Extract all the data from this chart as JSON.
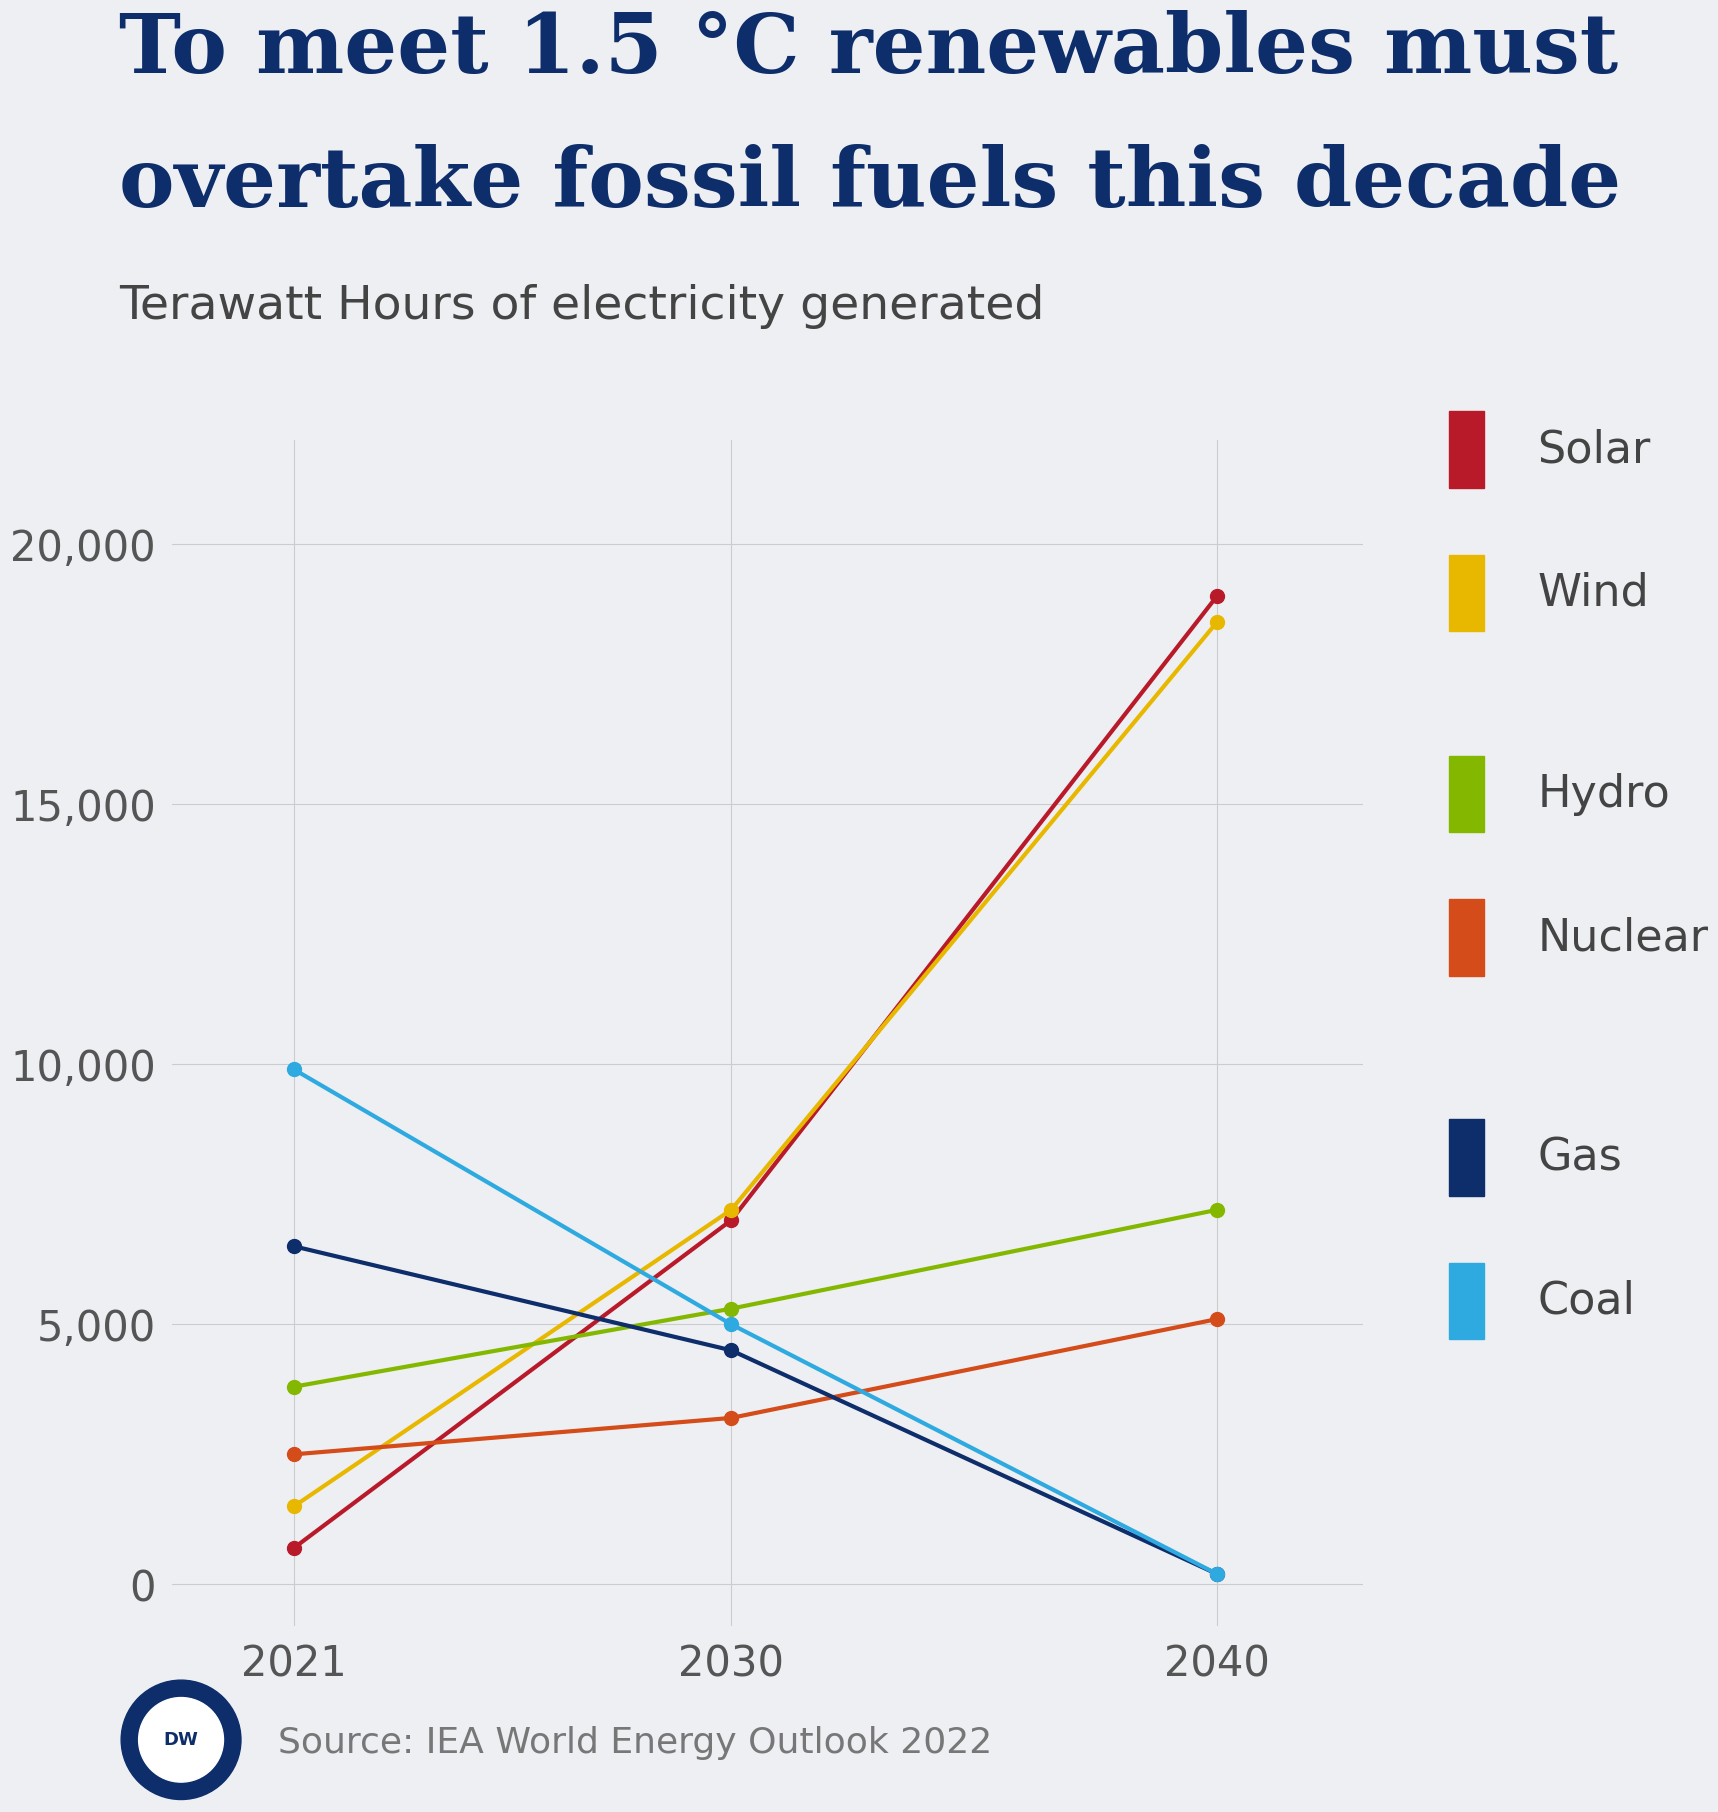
{
  "title_line1": "To meet 1.5 °C renewables must",
  "title_line2": "overtake fossil fuels this decade",
  "subtitle": "Terawatt Hours of electricity generated",
  "source": "Source: IEA World Energy Outlook 2022",
  "background_color": "#eeeff3",
  "title_color": "#0d2d6b",
  "subtitle_color": "#444444",
  "source_color": "#777777",
  "series": [
    {
      "name": "Solar",
      "color": "#b81a2a",
      "data": {
        "2021": 700,
        "2030": 7000,
        "2040": 19000
      }
    },
    {
      "name": "Wind",
      "color": "#e8b800",
      "data": {
        "2021": 1500,
        "2030": 7200,
        "2040": 18500
      }
    },
    {
      "name": "Hydro",
      "color": "#84b800",
      "data": {
        "2021": 3800,
        "2030": 5300,
        "2040": 7200
      }
    },
    {
      "name": "Nuclear",
      "color": "#d44c1a",
      "data": {
        "2021": 2500,
        "2030": 3200,
        "2040": 5100
      }
    },
    {
      "name": "Gas",
      "color": "#0d2d6b",
      "data": {
        "2021": 6500,
        "2030": 4500,
        "2040": 200
      }
    },
    {
      "name": "Coal",
      "color": "#2eaae0",
      "data": {
        "2021": 9900,
        "2030": 5000,
        "2040": 200
      }
    }
  ],
  "years": [
    2021,
    2030,
    2040
  ],
  "ylim": [
    -800,
    22000
  ],
  "yticks": [
    0,
    5000,
    10000,
    15000,
    20000
  ],
  "legend_groups": [
    [
      {
        "name": "Solar",
        "color": "#b81a2a"
      },
      {
        "name": "Wind",
        "color": "#e8b800"
      }
    ],
    [
      {
        "name": "Hydro",
        "color": "#84b800"
      },
      {
        "name": "Nuclear",
        "color": "#d44c1a"
      }
    ],
    [
      {
        "name": "Gas",
        "color": "#0d2d6b"
      },
      {
        "name": "Coal",
        "color": "#2eaae0"
      }
    ]
  ],
  "axis_tick_color": "#555555",
  "grid_color": "#cccccc",
  "line_width": 3.0,
  "marker_size": 10
}
